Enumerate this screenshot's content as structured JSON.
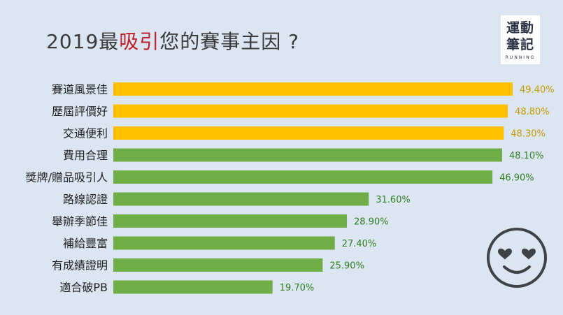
{
  "title": {
    "prefix": "2019最",
    "highlight": "吸引",
    "suffix": "您的賽事主因 ?"
  },
  "logo": {
    "line1": "運動",
    "line2": "筆記",
    "line3": "RUNNING"
  },
  "colors": {
    "top": "#ffc000",
    "rest": "#70ad47",
    "top_text": "#c89a00",
    "rest_text": "#2f7d1f",
    "highlight": "#c0202a"
  },
  "chart_data": {
    "type": "bar",
    "orientation": "horizontal",
    "title": "2019最吸引您的賽事主因 ?",
    "unit": "%",
    "xlim": [
      0,
      54
    ],
    "categories": [
      "賽道風景佳",
      "歷屆評價好",
      "交通便利",
      "費用合理",
      "獎牌/贈品吸引人",
      "路線認證",
      "舉辦季節佳",
      "補給豐富",
      "有成績證明",
      "適合破PB"
    ],
    "values": [
      49.4,
      48.8,
      48.3,
      48.1,
      46.9,
      31.6,
      28.9,
      27.4,
      25.9,
      19.7
    ],
    "labels": [
      "49.40%",
      "48.80%",
      "48.30%",
      "48.10%",
      "46.90%",
      "31.60%",
      "28.90%",
      "27.40%",
      "25.90%",
      "19.70%"
    ],
    "highlight_count": 3
  },
  "decor": {
    "icon": "heart-eyes-smiley-icon"
  }
}
